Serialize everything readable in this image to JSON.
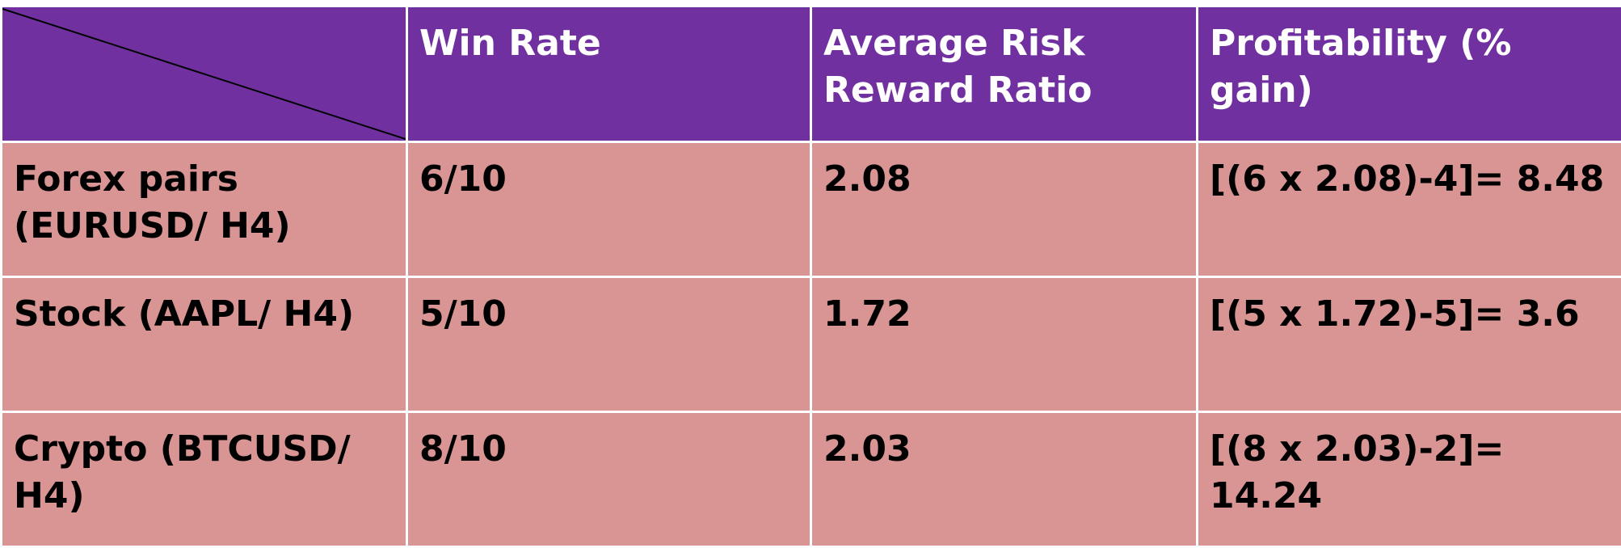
{
  "table": {
    "headers": [
      "",
      "Win Rate",
      "Average Risk Reward Ratio",
      "Profitability (% gain)"
    ],
    "rows": [
      {
        "label": "Forex pairs (EURUSD/ H4)",
        "win_rate": "6/10",
        "rr_ratio": "2.08",
        "profitability": "[(6 x 2.08)-4]= 8.48"
      },
      {
        "label": "Stock (AAPL/ H4)",
        "win_rate": "5/10",
        "rr_ratio": "1.72",
        "profitability": "[(5 x 1.72)-5]= 3.6"
      },
      {
        "label": "Crypto (BTCUSD/ H4)",
        "win_rate": "8/10",
        "rr_ratio": "2.03",
        "profitability": "[(8 x 2.03)-2]= 14.24"
      }
    ]
  },
  "colors": {
    "header_bg": "#7030a0",
    "header_text": "#ffffff",
    "body_bg": "#d99594",
    "body_text": "#000000",
    "grid": "#ffffff"
  }
}
